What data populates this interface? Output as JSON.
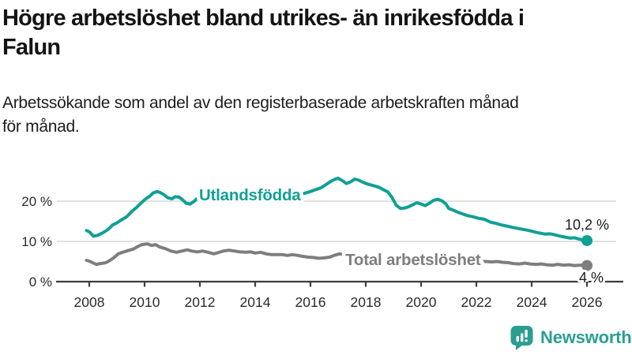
{
  "header": {
    "title_lines": [
      "Högre arbetslöshet bland utrikes- än inrikesfödda i",
      "Falun"
    ],
    "subtitle_lines": [
      "Arbetssökande som andel av den registerbaserade arbetskraften månad",
      "för månad."
    ]
  },
  "chart_data": {
    "type": "line",
    "title": "Högre arbetslöshet bland utrikes- än inrikesfödda i Falun",
    "subtitle": "Arbetssökande som andel av den registerbaserade arbetskraften månad för månad.",
    "unit": "%",
    "grid": "horizontal",
    "legend_position": "inline-labels",
    "xlim": [
      2007.9,
      2026.05
    ],
    "ylim": [
      0,
      27
    ],
    "x_ticks": [
      2008,
      2010,
      2012,
      2014,
      2016,
      2018,
      2020,
      2022,
      2024,
      2026
    ],
    "y_ticks": [
      {
        "value": 0,
        "label": "0 %"
      },
      {
        "value": 10,
        "label": "10 %"
      },
      {
        "value": 20,
        "label": "20 %"
      }
    ],
    "colors": {
      "accent_teal": "#11A094",
      "series_gray": "#7E7E7E",
      "axis": "#3D3D3D",
      "gridline": "#D9D9D9",
      "text": "#2B2B2B"
    },
    "series": [
      {
        "name": "Utlandsfödda",
        "color": "#11A094",
        "end_label": "10,2 %",
        "end_value": 10.2,
        "end_label_side": "above",
        "inline_label_pos": [
          2011.97,
          20.2
        ],
        "points": [
          [
            2007.9,
            12.7
          ],
          [
            2008.0,
            12.4
          ],
          [
            2008.15,
            11.3
          ],
          [
            2008.3,
            11.5
          ],
          [
            2008.45,
            12.0
          ],
          [
            2008.6,
            12.6
          ],
          [
            2008.7,
            13.1
          ],
          [
            2008.85,
            14.1
          ],
          [
            2009.0,
            14.6
          ],
          [
            2009.15,
            15.3
          ],
          [
            2009.35,
            16.1
          ],
          [
            2009.55,
            17.5
          ],
          [
            2009.7,
            18.4
          ],
          [
            2009.9,
            19.7
          ],
          [
            2010.05,
            20.6
          ],
          [
            2010.2,
            21.3
          ],
          [
            2010.3,
            22.0
          ],
          [
            2010.45,
            22.4
          ],
          [
            2010.55,
            22.2
          ],
          [
            2010.7,
            21.6
          ],
          [
            2010.85,
            20.8
          ],
          [
            2011.0,
            20.6
          ],
          [
            2011.1,
            21.1
          ],
          [
            2011.25,
            21.0
          ],
          [
            2011.4,
            20.2
          ],
          [
            2011.5,
            19.5
          ],
          [
            2011.65,
            19.3
          ],
          [
            2011.8,
            20.0
          ],
          [
            2011.9,
            20.7
          ],
          [
            2012.05,
            21.0
          ],
          [
            2012.2,
            21.1
          ],
          [
            2012.4,
            20.5
          ],
          [
            2012.6,
            20.2
          ],
          [
            2012.8,
            20.6
          ],
          [
            2013.0,
            20.9
          ],
          [
            2013.25,
            20.6
          ],
          [
            2013.5,
            20.3
          ],
          [
            2013.75,
            20.7
          ],
          [
            2014.0,
            21.0
          ],
          [
            2014.25,
            21.2
          ],
          [
            2014.5,
            20.9
          ],
          [
            2014.75,
            21.1
          ],
          [
            2015.0,
            21.0
          ],
          [
            2015.25,
            21.3
          ],
          [
            2015.5,
            21.6
          ],
          [
            2015.75,
            21.9
          ],
          [
            2016.0,
            22.4
          ],
          [
            2016.2,
            22.9
          ],
          [
            2016.4,
            23.4
          ],
          [
            2016.6,
            24.3
          ],
          [
            2016.75,
            25.0
          ],
          [
            2016.9,
            25.5
          ],
          [
            2017.0,
            25.7
          ],
          [
            2017.15,
            25.1
          ],
          [
            2017.3,
            24.4
          ],
          [
            2017.45,
            24.8
          ],
          [
            2017.6,
            25.5
          ],
          [
            2017.75,
            25.2
          ],
          [
            2017.9,
            24.7
          ],
          [
            2018.05,
            24.3
          ],
          [
            2018.2,
            24.0
          ],
          [
            2018.35,
            23.7
          ],
          [
            2018.5,
            23.4
          ],
          [
            2018.65,
            22.8
          ],
          [
            2018.8,
            22.3
          ],
          [
            2018.95,
            20.9
          ],
          [
            2019.1,
            19.0
          ],
          [
            2019.25,
            18.2
          ],
          [
            2019.4,
            18.3
          ],
          [
            2019.55,
            18.6
          ],
          [
            2019.7,
            19.1
          ],
          [
            2019.85,
            19.6
          ],
          [
            2020.0,
            19.3
          ],
          [
            2020.15,
            18.9
          ],
          [
            2020.3,
            19.5
          ],
          [
            2020.45,
            20.2
          ],
          [
            2020.6,
            20.5
          ],
          [
            2020.75,
            20.1
          ],
          [
            2020.9,
            19.3
          ],
          [
            2021.0,
            18.2
          ],
          [
            2021.15,
            17.8
          ],
          [
            2021.35,
            17.2
          ],
          [
            2021.55,
            16.7
          ],
          [
            2021.7,
            16.4
          ],
          [
            2021.9,
            16.1
          ],
          [
            2022.1,
            15.7
          ],
          [
            2022.3,
            15.5
          ],
          [
            2022.5,
            14.8
          ],
          [
            2022.7,
            14.5
          ],
          [
            2022.9,
            14.1
          ],
          [
            2023.1,
            13.8
          ],
          [
            2023.3,
            13.5
          ],
          [
            2023.6,
            13.1
          ],
          [
            2023.9,
            12.7
          ],
          [
            2024.2,
            12.2
          ],
          [
            2024.5,
            11.8
          ],
          [
            2024.65,
            11.9
          ],
          [
            2024.8,
            11.7
          ],
          [
            2025.1,
            11.2
          ],
          [
            2025.4,
            10.8
          ],
          [
            2025.55,
            10.9
          ],
          [
            2025.7,
            10.6
          ],
          [
            2025.85,
            10.4
          ],
          [
            2026.0,
            10.2
          ]
        ]
      },
      {
        "name": "Total arbetslöshet",
        "color": "#7E7E7E",
        "end_label": "4 %",
        "end_value": 4.0,
        "end_label_side": "below",
        "inline_label_pos": [
          2017.26,
          4.15
        ],
        "points": [
          [
            2007.9,
            5.3
          ],
          [
            2008.0,
            5.1
          ],
          [
            2008.15,
            4.6
          ],
          [
            2008.25,
            4.3
          ],
          [
            2008.4,
            4.5
          ],
          [
            2008.6,
            4.7
          ],
          [
            2008.75,
            5.3
          ],
          [
            2008.9,
            6.0
          ],
          [
            2009.05,
            6.9
          ],
          [
            2009.25,
            7.4
          ],
          [
            2009.4,
            7.7
          ],
          [
            2009.6,
            8.1
          ],
          [
            2009.75,
            8.7
          ],
          [
            2009.9,
            9.2
          ],
          [
            2010.1,
            9.4
          ],
          [
            2010.25,
            9.0
          ],
          [
            2010.4,
            9.2
          ],
          [
            2010.55,
            8.6
          ],
          [
            2010.75,
            8.2
          ],
          [
            2010.95,
            7.6
          ],
          [
            2011.15,
            7.3
          ],
          [
            2011.35,
            7.6
          ],
          [
            2011.55,
            7.9
          ],
          [
            2011.7,
            7.6
          ],
          [
            2011.9,
            7.4
          ],
          [
            2012.1,
            7.6
          ],
          [
            2012.3,
            7.3
          ],
          [
            2012.5,
            6.9
          ],
          [
            2012.7,
            7.3
          ],
          [
            2012.85,
            7.6
          ],
          [
            2013.05,
            7.8
          ],
          [
            2013.25,
            7.6
          ],
          [
            2013.45,
            7.4
          ],
          [
            2013.65,
            7.3
          ],
          [
            2013.85,
            7.4
          ],
          [
            2014.0,
            7.1
          ],
          [
            2014.2,
            7.3
          ],
          [
            2014.4,
            6.9
          ],
          [
            2014.6,
            6.7
          ],
          [
            2014.8,
            6.7
          ],
          [
            2015.0,
            6.7
          ],
          [
            2015.15,
            6.5
          ],
          [
            2015.35,
            6.7
          ],
          [
            2015.55,
            6.5
          ],
          [
            2015.7,
            6.3
          ],
          [
            2015.9,
            6.1
          ],
          [
            2016.1,
            6.0
          ],
          [
            2016.3,
            5.8
          ],
          [
            2016.5,
            5.9
          ],
          [
            2016.7,
            6.1
          ],
          [
            2016.85,
            6.5
          ],
          [
            2017.05,
            6.9
          ],
          [
            2017.2,
            6.7
          ],
          [
            2017.4,
            6.5
          ],
          [
            2017.7,
            6.2
          ],
          [
            2018.0,
            6.0
          ],
          [
            2018.4,
            5.8
          ],
          [
            2018.8,
            5.6
          ],
          [
            2019.2,
            5.4
          ],
          [
            2019.6,
            5.5
          ],
          [
            2019.9,
            5.8
          ],
          [
            2020.2,
            6.4
          ],
          [
            2020.5,
            6.8
          ],
          [
            2020.8,
            6.5
          ],
          [
            2021.1,
            6.1
          ],
          [
            2021.4,
            5.7
          ],
          [
            2021.7,
            5.4
          ],
          [
            2021.95,
            5.2
          ],
          [
            2022.15,
            5.1
          ],
          [
            2022.35,
            5.0
          ],
          [
            2022.55,
            4.9
          ],
          [
            2022.75,
            5.0
          ],
          [
            2022.95,
            4.8
          ],
          [
            2023.15,
            4.7
          ],
          [
            2023.35,
            4.5
          ],
          [
            2023.55,
            4.4
          ],
          [
            2023.75,
            4.6
          ],
          [
            2023.95,
            4.4
          ],
          [
            2024.15,
            4.3
          ],
          [
            2024.35,
            4.4
          ],
          [
            2024.55,
            4.2
          ],
          [
            2024.75,
            4.1
          ],
          [
            2024.95,
            4.3
          ],
          [
            2025.15,
            4.1
          ],
          [
            2025.35,
            4.2
          ],
          [
            2025.55,
            4.0
          ],
          [
            2025.75,
            4.1
          ],
          [
            2026.0,
            4.0
          ]
        ]
      }
    ]
  },
  "footer": {
    "brand": "Newsworthy",
    "logo_icon": "bar-chart-speech-bubble-icon",
    "accent": "#2B9E92"
  }
}
